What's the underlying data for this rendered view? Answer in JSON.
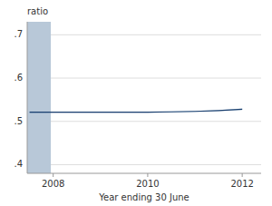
{
  "chart_data": {
    "type": "line",
    "x": [
      2007.5,
      2008,
      2008.5,
      2009,
      2009.5,
      2010,
      2010.5,
      2011,
      2011.5,
      2012
    ],
    "series": [
      {
        "color": "#1a3f6f",
        "band_color": "#8ab0cc",
        "values": [
          0.521,
          0.521,
          0.521,
          0.521,
          0.521,
          0.521,
          0.522,
          0.523,
          0.525,
          0.528
        ],
        "upper": [
          0.523,
          0.522,
          0.522,
          0.522,
          0.522,
          0.522,
          0.523,
          0.524,
          0.526,
          0.53
        ],
        "lower": [
          0.519,
          0.52,
          0.52,
          0.52,
          0.52,
          0.52,
          0.521,
          0.522,
          0.524,
          0.526
        ]
      }
    ],
    "shade_x": [
      2007.45,
      2007.95
    ],
    "shade_color": "#b8c8d8",
    "xlim": [
      2007.45,
      2012.4
    ],
    "ylim": [
      0.38,
      0.73
    ],
    "xticks": [
      2008,
      2010,
      2012
    ],
    "yticks": [
      {
        "value": 0.4,
        "label": ".4"
      },
      {
        "value": 0.5,
        "label": ".5"
      },
      {
        "value": 0.6,
        "label": ".6"
      },
      {
        "value": 0.7,
        "label": ".7"
      }
    ],
    "xlabel": "Year ending 30 June",
    "ylabel": "ratio",
    "grid": true
  }
}
